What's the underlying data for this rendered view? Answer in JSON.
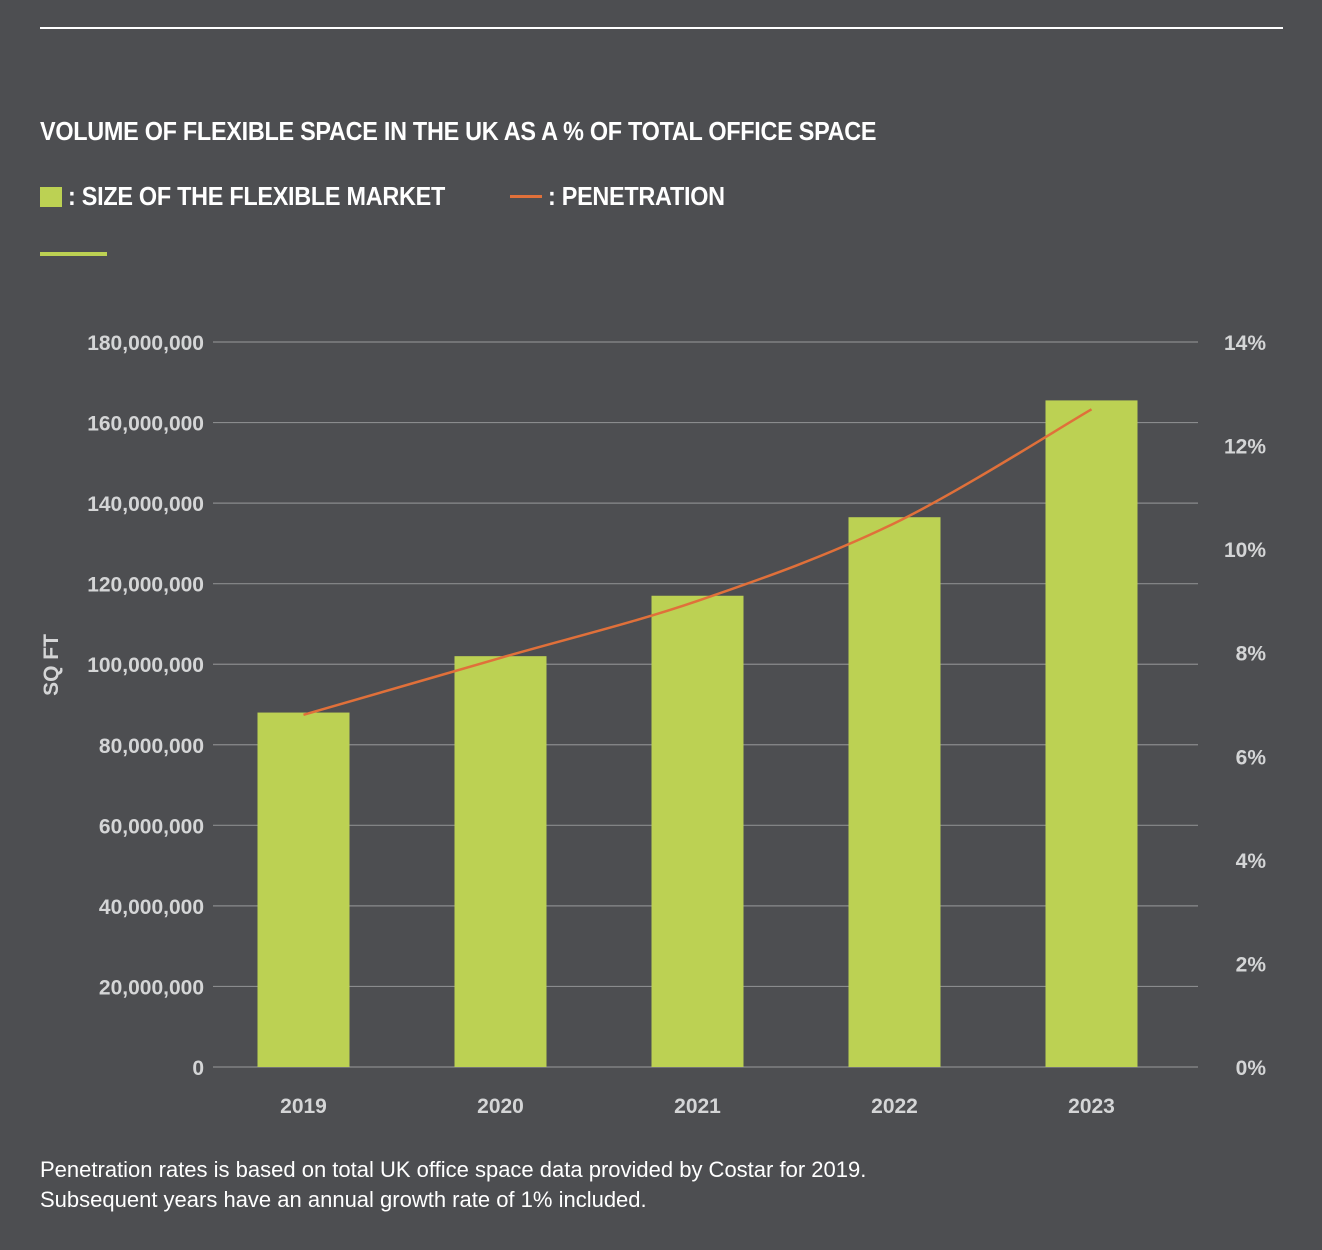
{
  "header": {
    "title": "VOLUME OF FLEXIBLE SPACE IN THE UK AS A % OF TOTAL OFFICE SPACE"
  },
  "legend": {
    "bar_label": ": SIZE OF THE FLEXIBLE MARKET",
    "line_label": ": PENETRATION"
  },
  "colors": {
    "background": "#4d4e51",
    "bar": "#bcd153",
    "line": "#e0703a",
    "grid": "#8a8b8d",
    "tick_text": "#d4d5d6"
  },
  "chart_data": {
    "type": "bar",
    "categories": [
      "2019",
      "2020",
      "2021",
      "2022",
      "2023"
    ],
    "series": [
      {
        "name": ": SIZE OF THE FLEXIBLE MARKET",
        "type": "bar",
        "axis": "left",
        "values": [
          88000000,
          102000000,
          117000000,
          136500000,
          165500000
        ]
      },
      {
        "name": ": PENETRATION",
        "type": "line",
        "axis": "right",
        "values": [
          6.8,
          7.9,
          9.0,
          10.5,
          12.7
        ]
      }
    ],
    "ylabel": "SQ FT",
    "ylim": [
      0,
      180000000
    ],
    "y_ticks": [
      "0",
      "20,000,000",
      "40,000,000",
      "60,000,000",
      "80,000,000",
      "100,000,000",
      "120,000,000",
      "140,000,000",
      "160,000,000",
      "180,000,000"
    ],
    "y2lim": [
      0,
      14
    ],
    "y2_ticks": [
      "0%",
      "2%",
      "4%",
      "6%",
      "8%",
      "10%",
      "12%",
      "14%"
    ],
    "grid": true
  },
  "footnote": {
    "line1": "Penetration rates is based on total UK office space data provided by Costar for 2019.",
    "line2": "Subsequent years have an annual growth rate of 1% included."
  }
}
